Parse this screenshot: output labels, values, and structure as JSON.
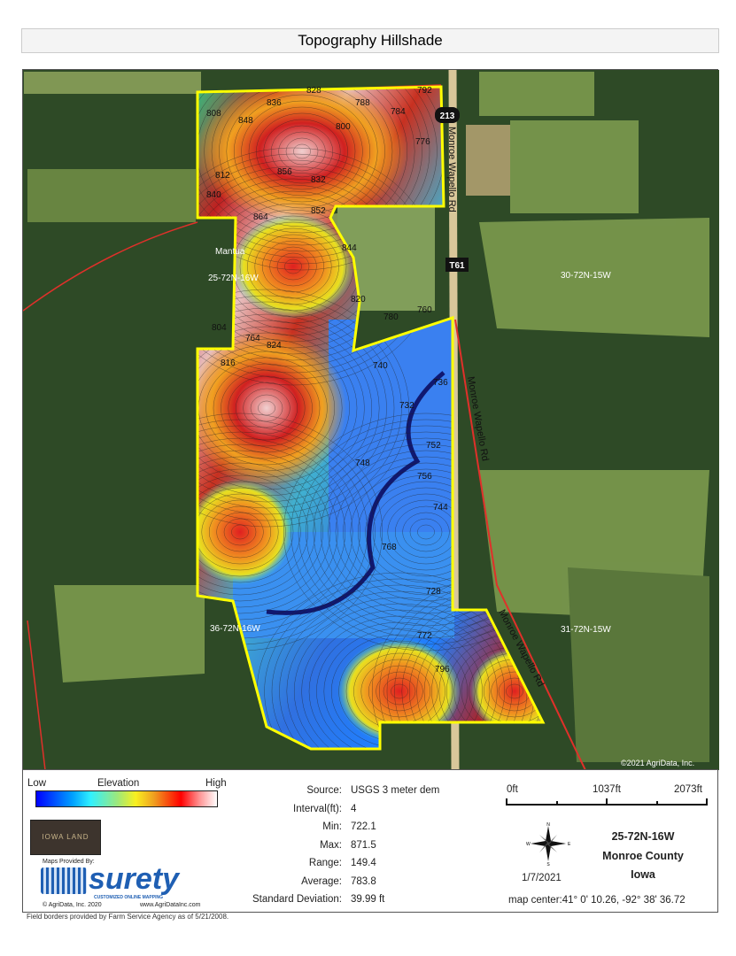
{
  "title": "Topography Hillshade",
  "map": {
    "labels": {
      "mantua": "Mantua",
      "sec_25": "25-72N-16W",
      "sec_30": "30-72N-15W",
      "sec_36": "36-72N-16W",
      "sec_31": "31-72N-15W",
      "road_1": "Monroe Wapello Rd",
      "road_2": "Monroe Wapello Rd",
      "road_3": "Monroe Wapello Rd",
      "shield_213": "213",
      "shield_t61": "T61",
      "copyright": "©2021 AgriData, Inc."
    },
    "contour_labels": [
      "808",
      "848",
      "836",
      "828",
      "792",
      "788",
      "784",
      "776",
      "800",
      "812",
      "840",
      "856",
      "832",
      "864",
      "852",
      "844",
      "820",
      "824",
      "804",
      "780",
      "760",
      "740",
      "748",
      "736",
      "752",
      "756",
      "744",
      "768",
      "772",
      "796",
      "816",
      "764",
      "732",
      "728"
    ],
    "colors": {
      "boundary": "#ffff00",
      "forest": "#2e4a26",
      "field": "#7c9a4e",
      "road_red": "#e0302a"
    }
  },
  "legend": {
    "low": "Low",
    "title": "Elevation",
    "high": "High",
    "stats": [
      {
        "label": "Source:",
        "value": "USGS 3 meter dem"
      },
      {
        "label": "Interval(ft):",
        "value": "4"
      },
      {
        "label": "Min:",
        "value": "722.1"
      },
      {
        "label": "Max:",
        "value": "871.5"
      },
      {
        "label": "Range:",
        "value": "149.4"
      },
      {
        "label": "Average:",
        "value": "783.8"
      },
      {
        "label": "Standard Deviation:",
        "value": "39.99 ft"
      }
    ],
    "scale": [
      "0ft",
      "1037ft",
      "2073ft"
    ],
    "compass": {
      "n": "N",
      "s": "S",
      "e": "E",
      "w": "W"
    },
    "date": "1/7/2021",
    "location": [
      "25-72N-16W",
      "Monroe County",
      "Iowa"
    ],
    "map_center": "map center:41° 0' 10.26,  -92° 38' 36.72",
    "iowa_land": "IOWA LAND",
    "maps_provided": "Maps Provided By:",
    "surety": "surety",
    "surety_tag": "CUSTOMIZED ONLINE MAPPING",
    "agridata": "© AgriData, Inc. 2020",
    "website": "www.AgriDataInc.com",
    "field_borders": "Field borders provided by Farm Service Agency as of 5/21/2008."
  }
}
